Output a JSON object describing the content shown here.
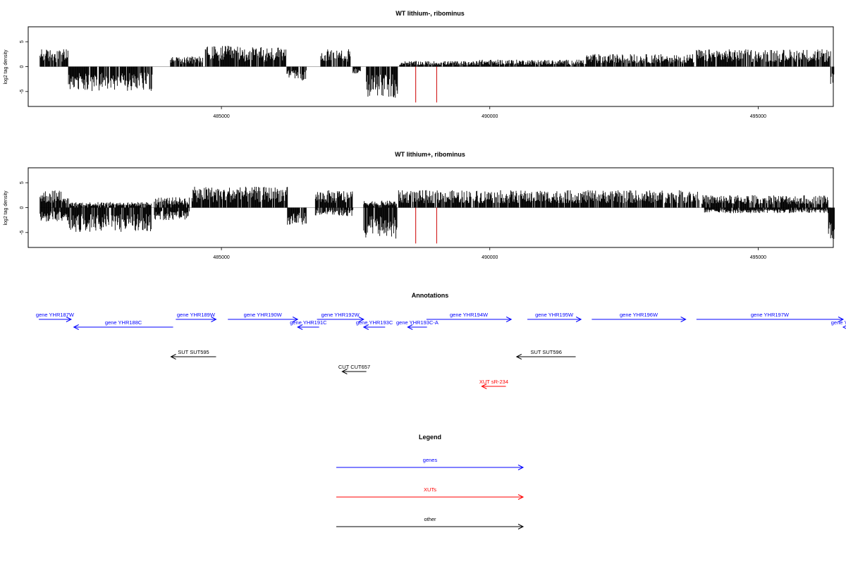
{
  "chart_data": [
    {
      "type": "bar",
      "title": "WT lithium-, ribominus",
      "ylabel": "log2 tag density",
      "xlabel": "",
      "xlim": [
        481400,
        496400
      ],
      "ylim": [
        -8,
        8
      ],
      "x_ticks": [
        485000,
        490000,
        495000
      ],
      "x_tick_labels": [
        "485000",
        "490000",
        "495000"
      ],
      "y_ticks": [
        -5,
        0,
        5
      ],
      "y_tick_labels": [
        "-5",
        "0",
        "5"
      ],
      "grid": false,
      "segments": [
        {
          "x": [
            481620,
            482140
          ],
          "y": [
            2.5,
            2.0
          ]
        },
        {
          "x": [
            482150,
            483710
          ],
          "y": [
            -3.5,
            -2.5
          ]
        },
        {
          "x": [
            483750,
            483970
          ],
          "y": [
            0.0,
            0.0
          ]
        },
        {
          "x": [
            484050,
            484650
          ],
          "y": [
            1.5,
            1.0
          ]
        },
        {
          "x": [
            484700,
            485300
          ],
          "y": [
            3.0,
            2.5
          ]
        },
        {
          "x": [
            485300,
            486200
          ],
          "y": [
            2.8,
            2.2
          ]
        },
        {
          "x": [
            486220,
            486580
          ],
          "y": [
            -2.0,
            -1.5
          ]
        },
        {
          "x": [
            486600,
            486800
          ],
          "y": [
            0.0,
            0.0
          ]
        },
        {
          "x": [
            486850,
            487400
          ],
          "y": [
            2.5,
            1.8
          ]
        },
        {
          "x": [
            487450,
            487600
          ],
          "y": [
            -1.0,
            -1.0
          ]
        },
        {
          "x": [
            487700,
            488280
          ],
          "y": [
            -4.5,
            -3.5
          ]
        },
        {
          "x": [
            488300,
            489750
          ],
          "y": [
            0.8,
            0.6
          ]
        },
        {
          "x": [
            489750,
            490200
          ],
          "y": [
            1.0,
            0.5
          ]
        },
        {
          "x": [
            490200,
            491800
          ],
          "y": [
            1.0,
            0.6
          ]
        },
        {
          "x": [
            491800,
            493800
          ],
          "y": [
            1.8,
            1.3
          ]
        },
        {
          "x": [
            493850,
            496350
          ],
          "y": [
            2.5,
            2.0
          ]
        },
        {
          "x": [
            496350,
            496420
          ],
          "y": [
            -3.0,
            -2.0
          ]
        }
      ],
      "highlights": [
        {
          "x": 488620,
          "y": -7.2,
          "color": "#cc0000"
        },
        {
          "x": 489010,
          "y": -7.2,
          "color": "#cc0000"
        }
      ]
    },
    {
      "type": "bar",
      "title": "WT lithium+, ribominus",
      "ylabel": "log2 tag density",
      "xlabel": "",
      "xlim": [
        481400,
        496400
      ],
      "ylim": [
        -8,
        8
      ],
      "x_ticks": [
        485000,
        490000,
        495000
      ],
      "x_tick_labels": [
        "485000",
        "490000",
        "495000"
      ],
      "y_ticks": [
        -5,
        0,
        5
      ],
      "y_tick_labels": [
        "-5",
        "0",
        "5"
      ],
      "grid": false,
      "segments": [
        {
          "x": [
            481620,
            482150
          ],
          "y": [
            2.5,
            2.0
          ]
        },
        {
          "x": [
            481620,
            482150
          ],
          "y": [
            -2.0,
            -1.5
          ]
        },
        {
          "x": [
            482150,
            483700
          ],
          "y": [
            -3.5,
            -2.5
          ]
        },
        {
          "x": [
            482150,
            483700
          ],
          "y": [
            0.8,
            0.5
          ]
        },
        {
          "x": [
            483750,
            484400
          ],
          "y": [
            1.5,
            1.0
          ]
        },
        {
          "x": [
            483750,
            484400
          ],
          "y": [
            -1.8,
            -1.2
          ]
        },
        {
          "x": [
            484450,
            486230
          ],
          "y": [
            3.0,
            2.5
          ]
        },
        {
          "x": [
            486230,
            486580
          ],
          "y": [
            -2.5,
            -1.8
          ]
        },
        {
          "x": [
            486750,
            487450
          ],
          "y": [
            2.5,
            1.8
          ]
        },
        {
          "x": [
            486750,
            487450
          ],
          "y": [
            -1.2,
            -0.8
          ]
        },
        {
          "x": [
            487650,
            488270
          ],
          "y": [
            -4.5,
            -3.5
          ]
        },
        {
          "x": [
            487650,
            488270
          ],
          "y": [
            1.0,
            0.7
          ]
        },
        {
          "x": [
            488300,
            490200
          ],
          "y": [
            2.5,
            2.0
          ]
        },
        {
          "x": [
            490200,
            493900
          ],
          "y": [
            2.5,
            2.0
          ]
        },
        {
          "x": [
            493950,
            496300
          ],
          "y": [
            1.8,
            1.4
          ]
        },
        {
          "x": [
            494000,
            496300
          ],
          "y": [
            -0.8,
            -0.5
          ]
        },
        {
          "x": [
            496300,
            496420
          ],
          "y": [
            -4.5,
            -3.5
          ]
        }
      ],
      "highlights": [
        {
          "x": 488620,
          "y": -7.2,
          "color": "#cc0000"
        },
        {
          "x": 489010,
          "y": -7.2,
          "color": "#cc0000"
        }
      ]
    }
  ],
  "annotations": {
    "title": "Annotations",
    "features": [
      {
        "label": "gene YHR187W",
        "start": 481250,
        "end": 482200,
        "strand": "+",
        "row": 0,
        "kind": "gene"
      },
      {
        "label": "gene YHR188C",
        "start": 482250,
        "end": 484100,
        "strand": "-",
        "row": 1,
        "kind": "gene"
      },
      {
        "label": "gene YHR189W",
        "start": 484150,
        "end": 484900,
        "strand": "+",
        "row": 0,
        "kind": "gene"
      },
      {
        "label": "gene YHR190W",
        "start": 485120,
        "end": 486420,
        "strand": "+",
        "row": 0,
        "kind": "gene"
      },
      {
        "label": "gene YHR191C",
        "start": 486420,
        "end": 486820,
        "strand": "-",
        "row": 1,
        "kind": "gene"
      },
      {
        "label": "gene YHR192W",
        "start": 486780,
        "end": 487650,
        "strand": "+",
        "row": 0,
        "kind": "gene"
      },
      {
        "label": "gene YHR193C",
        "start": 487650,
        "end": 488050,
        "strand": "-",
        "row": 1,
        "kind": "gene"
      },
      {
        "label": "gene YHR193C-A",
        "start": 488470,
        "end": 488830,
        "strand": "-",
        "row": 1,
        "kind": "gene"
      },
      {
        "label": "gene YHR194W",
        "start": 488820,
        "end": 490400,
        "strand": "+",
        "row": 0,
        "kind": "gene"
      },
      {
        "label": "gene YHR195W",
        "start": 490700,
        "end": 491700,
        "strand": "+",
        "row": 0,
        "kind": "gene"
      },
      {
        "label": "gene YHR196W",
        "start": 491900,
        "end": 493650,
        "strand": "+",
        "row": 0,
        "kind": "gene"
      },
      {
        "label": "gene YHR197W",
        "start": 493850,
        "end": 496600,
        "strand": "+",
        "row": 0,
        "kind": "gene"
      },
      {
        "label": "gene YHR",
        "start": 496700,
        "end": 497300,
        "strand": "-",
        "row": 1,
        "kind": "gene"
      },
      {
        "label": "SUT SUT595",
        "start": 484060,
        "end": 484900,
        "strand": "-",
        "row": 2,
        "kind": "other"
      },
      {
        "label": "SUT SUT596",
        "start": 490500,
        "end": 491600,
        "strand": "-",
        "row": 2,
        "kind": "other"
      },
      {
        "label": "CUT CUT657",
        "start": 487250,
        "end": 487700,
        "strand": "-",
        "row": 3,
        "kind": "other"
      },
      {
        "label": "XUT sR-234",
        "start": 489850,
        "end": 490300,
        "strand": "-",
        "row": 4,
        "kind": "xut"
      }
    ]
  },
  "legend": {
    "title": "Legend",
    "items": [
      {
        "label": "genes",
        "kind": "gene"
      },
      {
        "label": "XUTs",
        "kind": "xut"
      },
      {
        "label": "other",
        "kind": "other"
      }
    ]
  },
  "colors": {
    "gene": "#0000ff",
    "xut": "#ff0000",
    "other": "#000000",
    "signal": "#000000",
    "highlight": "#cc0000",
    "axis": "#000000",
    "baseline": "#999999"
  }
}
